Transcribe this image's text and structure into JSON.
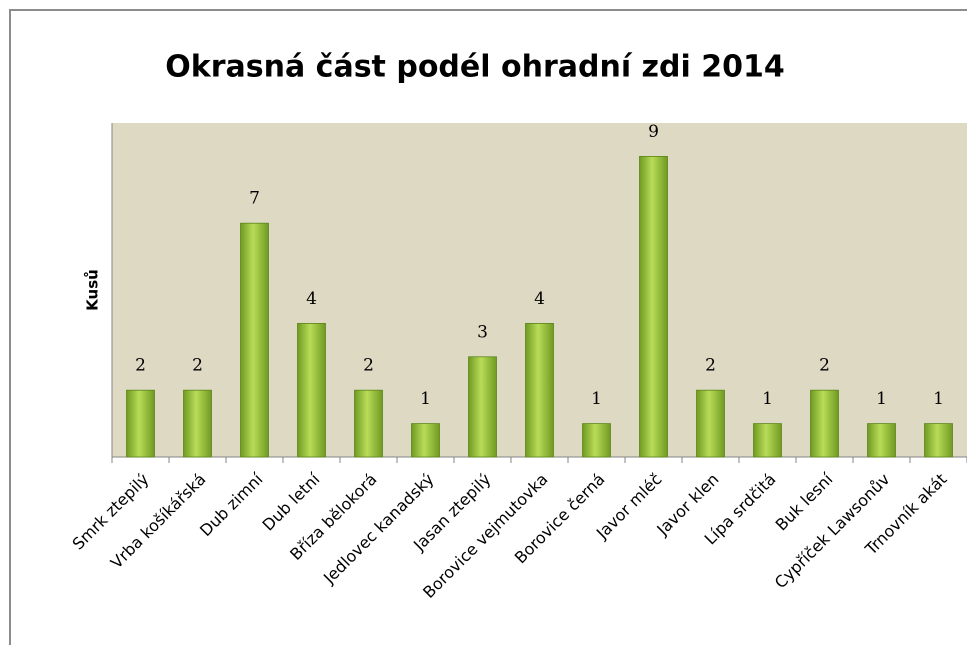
{
  "chart_data": {
    "type": "bar",
    "title": "Okrasná část podél ohradní zdi 2014",
    "y_label": "Kusů",
    "categories": [
      "Smrk ztepilý",
      "Vrba košíkářská",
      "Dub zimní",
      "Dub letní",
      "Bříza bělokorá",
      "Jedlovec kanadský",
      "Jasan ztepilý",
      "Borovice vejmutovka",
      "Borovice černá",
      "Javor mléč",
      "Javor klen",
      "Lípa srdčitá",
      "Buk lesní",
      "Cypříček Lawsonův",
      "Trnovník akát"
    ],
    "values": [
      2,
      2,
      7,
      4,
      2,
      1,
      3,
      4,
      1,
      9,
      2,
      1,
      2,
      1,
      1
    ],
    "color": "#9bc440",
    "ylim": [
      0,
      10
    ]
  }
}
